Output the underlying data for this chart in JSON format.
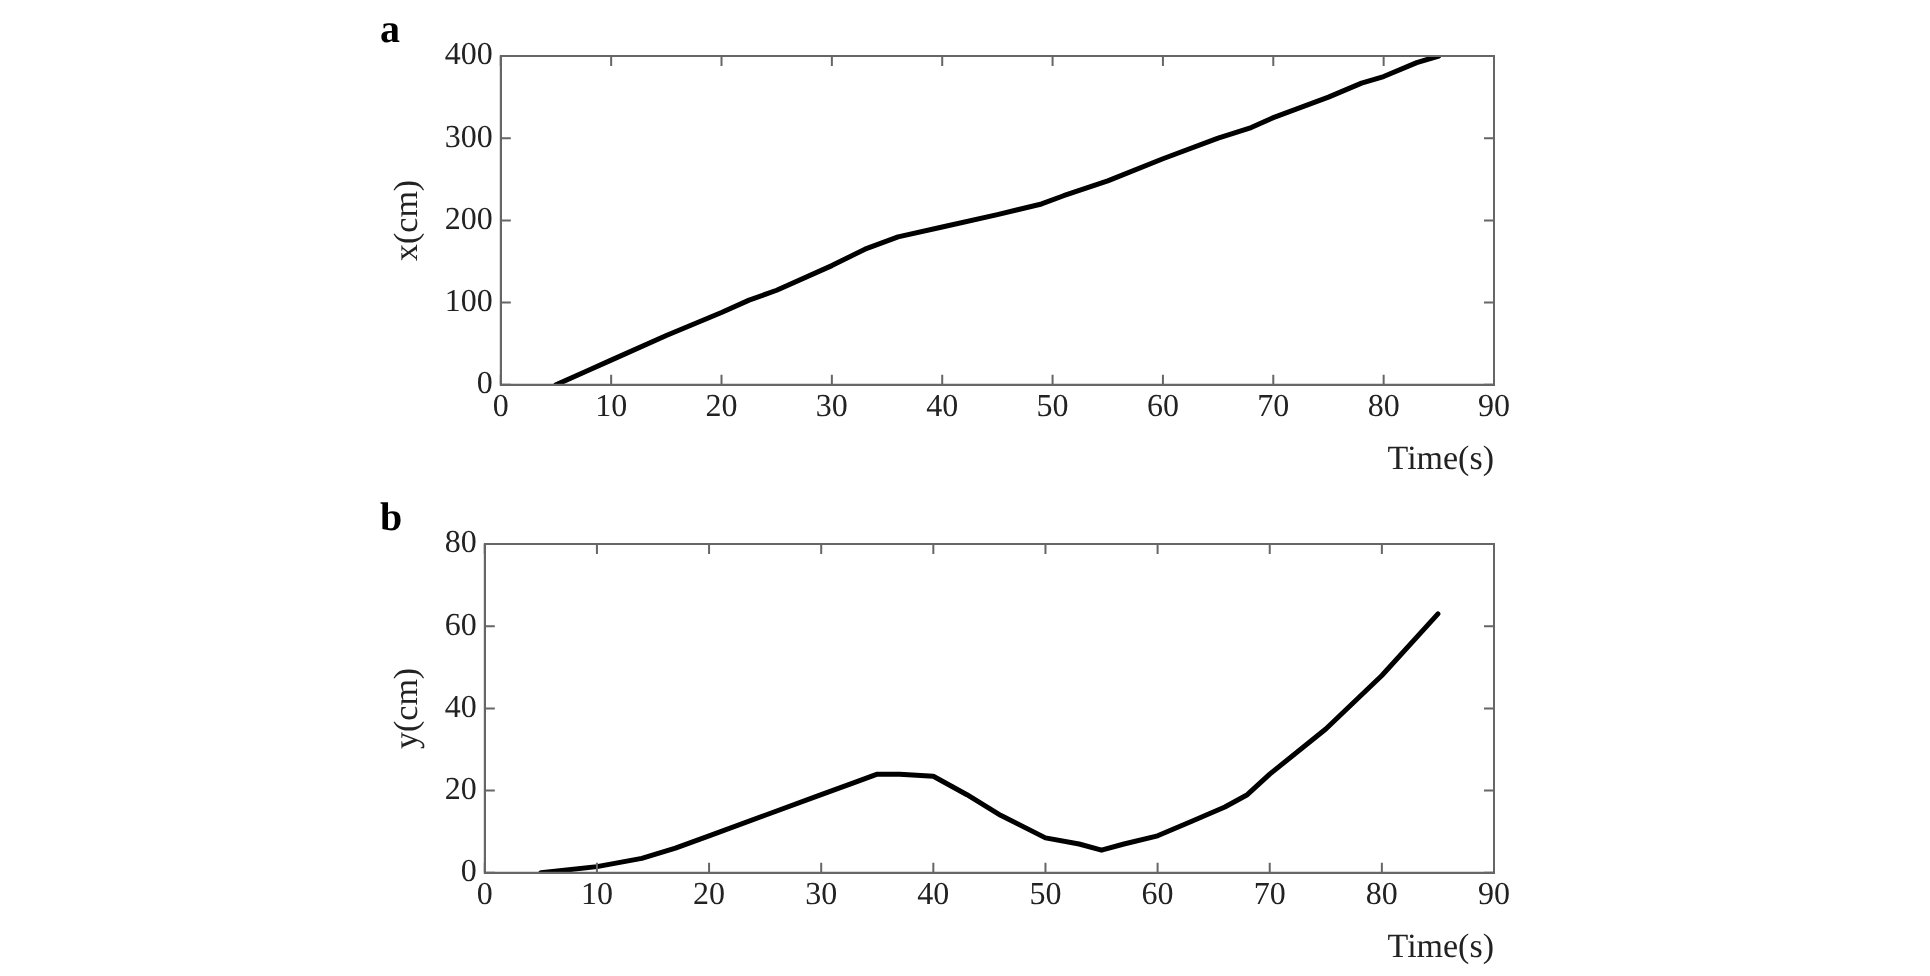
{
  "chart_data": [
    {
      "type": "line",
      "title": "a",
      "xlabel": "Time(s)",
      "ylabel": "x(cm)",
      "xlim": [
        0,
        90
      ],
      "xticks": [
        0,
        10,
        20,
        30,
        40,
        50,
        60,
        70,
        80,
        90
      ],
      "ylim": [
        0,
        400
      ],
      "yticks": [
        0,
        100,
        200,
        300,
        400
      ],
      "grid": false,
      "legend": false,
      "marker": "none",
      "line_style": "solid",
      "series": [
        {
          "color": "#000000",
          "x": [
            5,
            8,
            10,
            15,
            20,
            22.5,
            25,
            30,
            33,
            36,
            40,
            45,
            49,
            51,
            55,
            60,
            65,
            68,
            70,
            75,
            78,
            80,
            83,
            85
          ],
          "values": [
            0,
            18,
            30,
            60,
            88,
            103,
            115,
            145,
            165,
            180,
            192,
            207,
            220,
            230,
            248,
            275,
            300,
            313,
            325,
            350,
            367,
            375,
            392,
            400
          ]
        }
      ]
    },
    {
      "type": "line",
      "title": "b",
      "xlabel": "Time(s)",
      "ylabel": "y(cm)",
      "xlim": [
        0,
        90
      ],
      "xticks": [
        0,
        10,
        20,
        30,
        40,
        50,
        60,
        70,
        80,
        90
      ],
      "ylim": [
        0,
        80
      ],
      "yticks": [
        0,
        20,
        40,
        60,
        80
      ],
      "grid": false,
      "legend": false,
      "marker": "none",
      "line_style": "solid",
      "series": [
        {
          "color": "#000000",
          "x": [
            5,
            10,
            14,
            17,
            20,
            25,
            30,
            33,
            35,
            37,
            40,
            43,
            46,
            50,
            53,
            55,
            57,
            60,
            63,
            66,
            68,
            70,
            75,
            80,
            85
          ],
          "values": [
            0,
            1.5,
            3.5,
            6,
            9,
            14,
            19,
            22,
            24,
            24,
            23.5,
            19,
            14,
            8.5,
            7,
            5.5,
            7,
            9,
            12.5,
            16,
            19,
            24,
            35,
            48,
            63
          ]
        }
      ]
    }
  ]
}
